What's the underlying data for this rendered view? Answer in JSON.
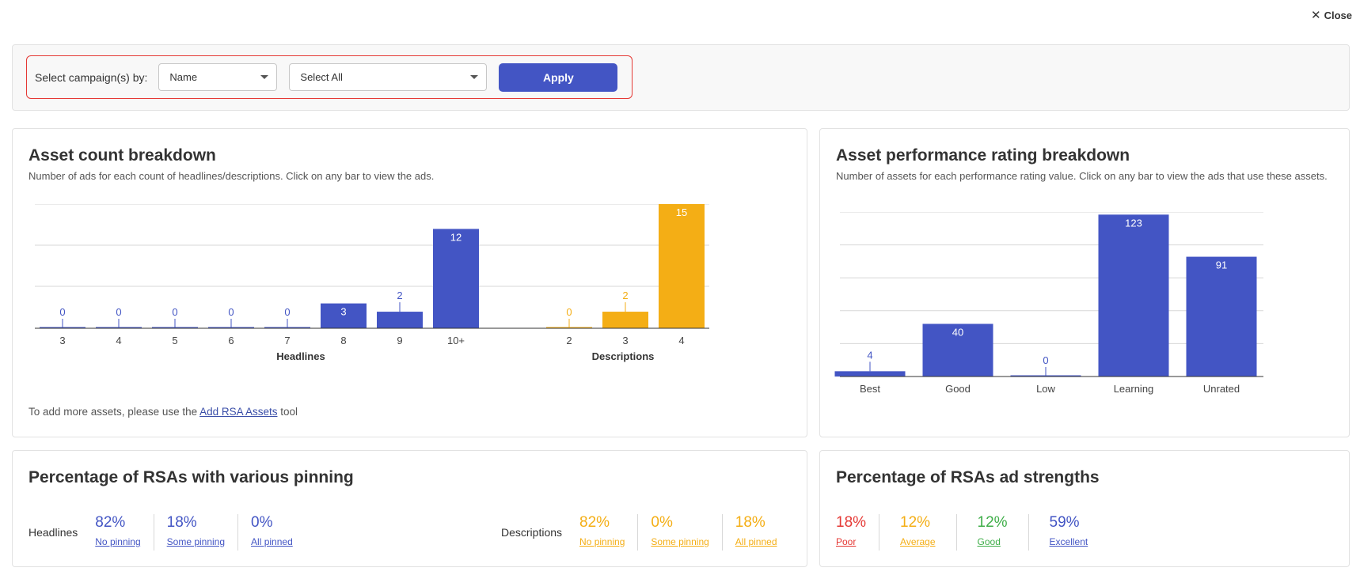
{
  "close_label": "Close",
  "filter": {
    "label": "Select campaign(s) by:",
    "select_by": "Name",
    "selection": "Select All",
    "apply_label": "Apply"
  },
  "asset_count": {
    "title": "Asset count breakdown",
    "subtitle": "Number of ads for each count of headlines/descriptions. Click on any bar to view the ads.",
    "footnote_prefix": "To add more assets, please use the",
    "footnote_link": "Add RSA Assets",
    "footnote_suffix": "tool"
  },
  "performance": {
    "title": "Asset performance rating breakdown",
    "subtitle": "Number of assets for each performance rating value. Click on any bar to view the ads that use these assets."
  },
  "pinning": {
    "title": "Percentage of RSAs with various pinning",
    "headlines_label": "Headlines",
    "headlines": [
      {
        "value": "82%",
        "label": "No pinning"
      },
      {
        "value": "18%",
        "label": "Some pinning"
      },
      {
        "value": "0%",
        "label": "All pinned"
      }
    ],
    "descriptions_label": "Descriptions",
    "descriptions": [
      {
        "value": "82%",
        "label": "No pinning"
      },
      {
        "value": "0%",
        "label": "Some pinning"
      },
      {
        "value": "18%",
        "label": "All pinned"
      }
    ]
  },
  "strength": {
    "title": "Percentage of RSAs ad strengths",
    "items": [
      {
        "value": "18%",
        "label": "Poor"
      },
      {
        "value": "12%",
        "label": "Average"
      },
      {
        "value": "12%",
        "label": "Good"
      },
      {
        "value": "59%",
        "label": "Excellent"
      }
    ]
  },
  "colors": {
    "blue": "#4355c4",
    "orange": "#f4ae15",
    "red": "#e53935",
    "green": "#3fae49"
  },
  "chart_data": [
    {
      "type": "bar",
      "groups": [
        {
          "name": "Headlines",
          "categories": [
            "3",
            "4",
            "5",
            "6",
            "7",
            "8",
            "9",
            "10+"
          ],
          "values": [
            0,
            0,
            0,
            0,
            0,
            3,
            2,
            12
          ],
          "color": "#4355c4"
        },
        {
          "name": "Descriptions",
          "categories": [
            "2",
            "3",
            "4"
          ],
          "values": [
            0,
            2,
            15
          ],
          "color": "#f4ae15"
        }
      ],
      "ylim": [
        0,
        15
      ],
      "grid": true
    },
    {
      "type": "bar",
      "categories": [
        "Best",
        "Good",
        "Low",
        "Learning",
        "Unrated"
      ],
      "values": [
        4,
        40,
        0,
        123,
        91
      ],
      "color": "#4355c4",
      "ylim": [
        0,
        125
      ],
      "grid": true
    }
  ]
}
